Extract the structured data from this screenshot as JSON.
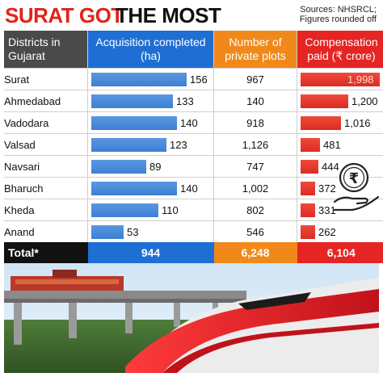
{
  "header": {
    "title_part1": "SURAT GOT",
    "title_part2": "THE MOST",
    "sources_line1": "Sources: NHSRCL;",
    "sources_line2": "Figures rounded off"
  },
  "columns": {
    "district": "Districts in Gujarat",
    "acquisition": "Acquisition completed (ha)",
    "plots": "Number of private plots",
    "compensation": "Compensation paid (₹ crore)"
  },
  "chart_data": {
    "type": "table",
    "categories": [
      "Surat",
      "Ahmedabad",
      "Vadodara",
      "Valsad",
      "Navsari",
      "Bharuch",
      "Kheda",
      "Anand"
    ],
    "series": [
      {
        "name": "Acquisition completed (ha)",
        "values": [
          156,
          133,
          140,
          123,
          89,
          140,
          110,
          53
        ],
        "color": "#3d7fd3"
      },
      {
        "name": "Number of private plots",
        "values": [
          "967",
          "140",
          "918",
          "1,126",
          "747",
          "1,002",
          "802",
          "546"
        ]
      },
      {
        "name": "Compensation paid (₹ crore)",
        "values": [
          "1,998",
          "1,200",
          "1,016",
          "481",
          "444",
          "372",
          "331",
          "262"
        ],
        "numeric": [
          1998,
          1200,
          1016,
          481,
          444,
          372,
          331,
          262
        ],
        "color": "#e52424"
      }
    ],
    "totals": {
      "label": "Total*",
      "acquisition": "944",
      "plots": "6,248",
      "compensation": "6,104"
    }
  },
  "icons": {
    "rupee": "rupee-hand-icon"
  },
  "photo": {
    "subject": "bullet-train-photo"
  }
}
